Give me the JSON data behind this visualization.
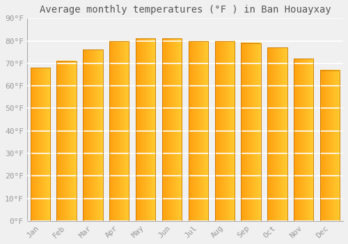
{
  "months": [
    "Jan",
    "Feb",
    "Mar",
    "Apr",
    "May",
    "Jun",
    "Jul",
    "Aug",
    "Sep",
    "Oct",
    "Nov",
    "Dec"
  ],
  "values": [
    68,
    71,
    76,
    80,
    81,
    81,
    80,
    80,
    79,
    77,
    72,
    67
  ],
  "bar_color_left": "#FFA010",
  "bar_color_right": "#FFCA30",
  "title": "Average monthly temperatures (°F ) in Ban Houayxay",
  "ylim": [
    0,
    90
  ],
  "yticks": [
    0,
    10,
    20,
    30,
    40,
    50,
    60,
    70,
    80,
    90
  ],
  "ytick_labels": [
    "0°F",
    "10°F",
    "20°F",
    "30°F",
    "40°F",
    "50°F",
    "60°F",
    "70°F",
    "80°F",
    "90°F"
  ],
  "background_color": "#f0f0f0",
  "plot_bg_color": "#f0f0f0",
  "grid_color": "#ffffff",
  "title_fontsize": 10,
  "tick_fontsize": 8,
  "font_color": "#999999",
  "title_color": "#555555",
  "bar_edge_color": "#c87800",
  "bar_width": 0.75
}
